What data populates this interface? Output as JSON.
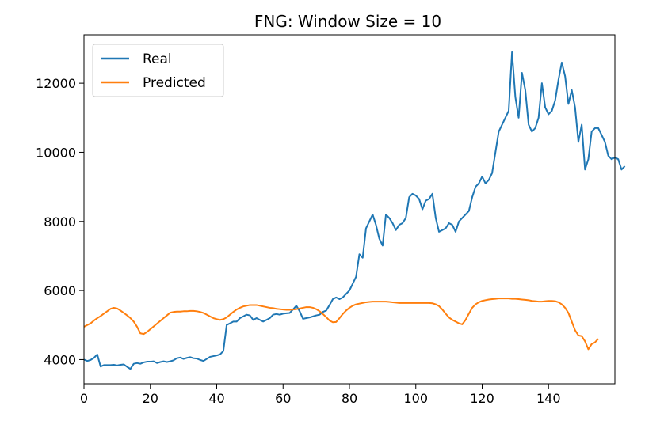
{
  "chart_data": {
    "type": "line",
    "title": "FNG: Window Size = 10",
    "xlabel": "",
    "ylabel": "",
    "xlim": [
      0,
      160
    ],
    "ylim": [
      3300,
      13400
    ],
    "x_ticks": [
      0,
      20,
      40,
      60,
      80,
      100,
      120,
      140
    ],
    "y_ticks": [
      4000,
      6000,
      8000,
      10000,
      12000
    ],
    "x_tick_labels": [
      "0",
      "20",
      "40",
      "60",
      "80",
      "100",
      "120",
      "140"
    ],
    "y_tick_labels": [
      "4000",
      "6000",
      "8000",
      "10000",
      "12000"
    ],
    "grid": false,
    "legend": "top-left",
    "series": [
      {
        "name": "Real",
        "color": "#1f77b4",
        "values": [
          4000,
          3960,
          3990,
          4050,
          4150,
          3800,
          3840,
          3840,
          3840,
          3850,
          3830,
          3850,
          3860,
          3790,
          3730,
          3880,
          3900,
          3880,
          3920,
          3940,
          3940,
          3950,
          3900,
          3930,
          3950,
          3930,
          3950,
          3980,
          4040,
          4060,
          4020,
          4050,
          4070,
          4040,
          4030,
          3990,
          3960,
          4020,
          4080,
          4100,
          4120,
          4150,
          4250,
          5000,
          5050,
          5100,
          5100,
          5200,
          5250,
          5300,
          5280,
          5150,
          5200,
          5150,
          5100,
          5150,
          5200,
          5300,
          5320,
          5300,
          5330,
          5340,
          5350,
          5450,
          5560,
          5400,
          5180,
          5200,
          5220,
          5250,
          5280,
          5300,
          5380,
          5420,
          5580,
          5750,
          5800,
          5750,
          5800,
          5900,
          6000,
          6200,
          6400,
          7050,
          6950,
          7800,
          8000,
          8200,
          7900,
          7500,
          7300,
          8200,
          8100,
          7950,
          7750,
          7900,
          7950,
          8100,
          8700,
          8800,
          8750,
          8650,
          8350,
          8600,
          8650,
          8800,
          8100,
          7700,
          7750,
          7800,
          7950,
          7900,
          7700,
          8000,
          8100,
          8200,
          8300,
          8700,
          9000,
          9100,
          9300,
          9100,
          9200,
          9400,
          10000,
          10600,
          10800,
          11000,
          11200,
          12900,
          11600,
          11000,
          12300,
          11800,
          10800,
          10600,
          10700,
          11000,
          12000,
          11300,
          11100,
          11200,
          11500,
          12100,
          12600,
          12200,
          11400,
          11800,
          11300,
          10300,
          10800,
          9500,
          9800,
          10600,
          10700,
          10700,
          10500,
          10300,
          9900,
          9800,
          9850,
          9800,
          9500,
          9600
        ]
      },
      {
        "name": "Predicted",
        "color": "#ff7f0e",
        "values": [
          4950,
          5000,
          5050,
          5130,
          5200,
          5260,
          5330,
          5400,
          5470,
          5500,
          5480,
          5420,
          5350,
          5280,
          5200,
          5100,
          4950,
          4760,
          4740,
          4800,
          4880,
          4960,
          5040,
          5120,
          5200,
          5280,
          5360,
          5380,
          5390,
          5390,
          5400,
          5400,
          5410,
          5410,
          5400,
          5380,
          5350,
          5300,
          5250,
          5200,
          5170,
          5150,
          5170,
          5220,
          5300,
          5380,
          5450,
          5500,
          5540,
          5560,
          5580,
          5580,
          5580,
          5560,
          5540,
          5520,
          5500,
          5490,
          5470,
          5460,
          5450,
          5440,
          5440,
          5450,
          5460,
          5480,
          5500,
          5520,
          5520,
          5500,
          5460,
          5400,
          5320,
          5230,
          5130,
          5080,
          5090,
          5200,
          5320,
          5420,
          5500,
          5560,
          5600,
          5620,
          5640,
          5660,
          5670,
          5680,
          5680,
          5680,
          5680,
          5680,
          5670,
          5660,
          5650,
          5640,
          5640,
          5640,
          5640,
          5640,
          5640,
          5640,
          5640,
          5640,
          5640,
          5630,
          5600,
          5550,
          5450,
          5330,
          5220,
          5150,
          5100,
          5050,
          5020,
          5150,
          5330,
          5500,
          5600,
          5660,
          5700,
          5720,
          5740,
          5750,
          5760,
          5770,
          5770,
          5770,
          5770,
          5760,
          5760,
          5750,
          5740,
          5730,
          5720,
          5700,
          5690,
          5680,
          5680,
          5690,
          5700,
          5700,
          5690,
          5660,
          5600,
          5500,
          5350,
          5100,
          4850,
          4700,
          4680,
          4530,
          4300,
          4450,
          4500,
          4600
        ]
      }
    ]
  }
}
